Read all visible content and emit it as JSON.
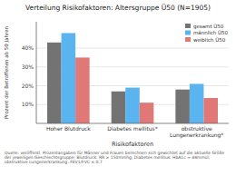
{
  "chart_data": {
    "type": "bar",
    "title": "Verteilung Risikofaktoren: Altersgruppe Ü50 (N=1905)",
    "categories": [
      "Hoher Blutdruck",
      "Diabetes mellitus*",
      "obstruktive Lungenerkrankung*"
    ],
    "series": [
      {
        "name": "gesamt Ü50",
        "color": "#737373",
        "values": [
          0.43,
          0.17,
          0.18
        ]
      },
      {
        "name": "männlich Ü50",
        "color": "#5ab4f0",
        "values": [
          0.48,
          0.19,
          0.21
        ]
      },
      {
        "name": "weiblich Ü50",
        "color": "#e07878",
        "values": [
          0.35,
          0.11,
          0.135
        ]
      }
    ],
    "ylabel": "Prozent der Betroffenen ab 50 Jahren",
    "xlabel": "Risikofaktoren",
    "ylim": [
      0,
      0.54
    ],
    "yticks": [
      {
        "value": 0.1,
        "label": "10%"
      },
      {
        "value": 0.2,
        "label": "20%"
      },
      {
        "value": 0.3,
        "label": "30%"
      },
      {
        "value": 0.4,
        "label": "40%"
      }
    ],
    "grid": true,
    "legend": "upper right",
    "annotations": [
      "Quelle: veröffentl. Prozentangaben für Männer und Frauen berechnen sich gewichtet auf die aktuelle Größe der jeweiligen Geschlechtsgruppe; Blutdruck: RR ≥ 150mmhg; Diabetes mellitus: HbA1c = 48mmol; obstruktive Lungenerkrankung: FEV1/FVC ≤ 0.7"
    ]
  }
}
